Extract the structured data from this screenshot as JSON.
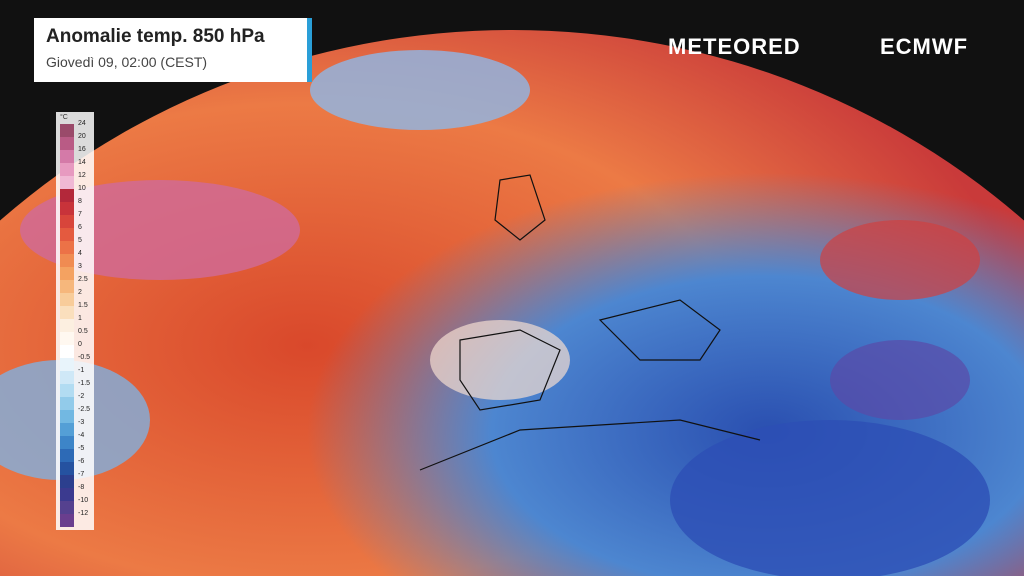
{
  "header": {
    "title": "Anomalie temp. 850 hPa",
    "subtitle": "Giovedì 09, 02:00 (CEST)"
  },
  "logos": {
    "left": "METEORED",
    "right": "ECMWF"
  },
  "legend": {
    "unit": "°C",
    "labels": [
      24,
      20,
      16,
      14,
      12,
      10,
      8,
      7,
      6,
      5,
      4,
      3,
      2.5,
      2,
      1.5,
      1,
      0.5,
      0,
      -0.5,
      -1,
      -1.5,
      -2,
      -2.5,
      -3,
      -4,
      -5,
      -6,
      -7,
      -8,
      -10,
      -12
    ]
  }
}
